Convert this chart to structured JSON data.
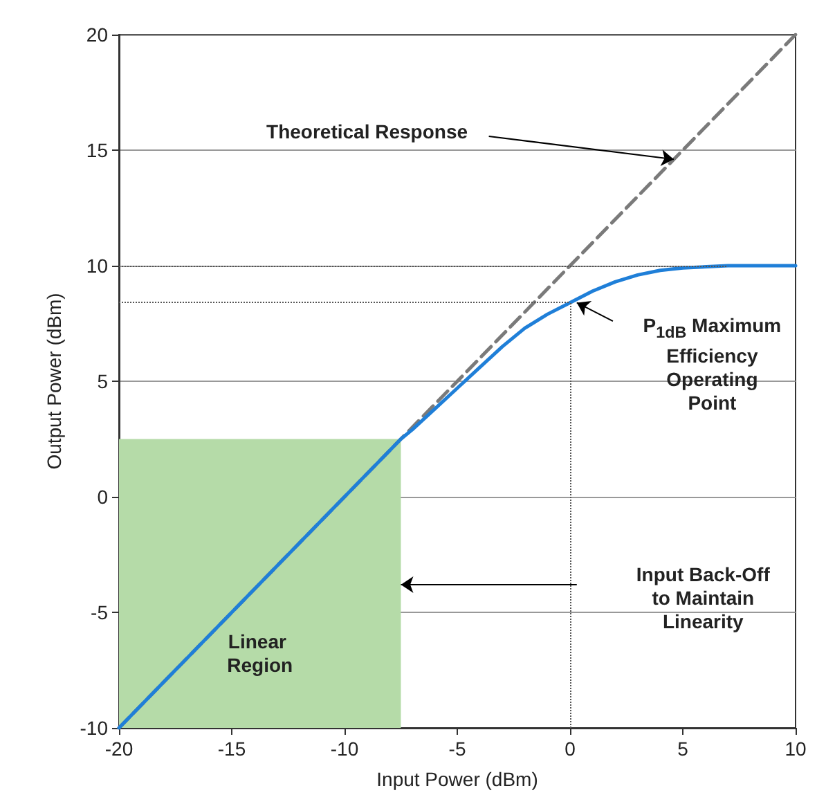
{
  "chart_data": {
    "type": "line",
    "xlabel": "Input Power (dBm)",
    "ylabel": "Output Power (dBm)",
    "xlim": [
      -20,
      10
    ],
    "xticks": [
      -20,
      -15,
      -10,
      -5,
      0,
      5,
      10
    ],
    "ylim": [
      -10,
      20
    ],
    "yticks": [
      -10,
      -5,
      0,
      5,
      10,
      15,
      20
    ],
    "grid": "y",
    "marker": "none",
    "series": [
      {
        "type": "line",
        "line_style": "dashed",
        "color": "#7a7a7a",
        "x": [
          -20,
          10
        ],
        "values": [
          -10,
          20
        ]
      },
      {
        "type": "line",
        "line_style": "solid",
        "color": "#1f7fd8",
        "x": [
          -20,
          -15,
          -10,
          -8,
          -7.5,
          -7,
          -6,
          -5,
          -4,
          -3,
          -2,
          -1,
          0,
          1,
          2,
          3,
          4,
          5,
          7,
          10
        ],
        "values": [
          -10,
          -5,
          0,
          2,
          2.5,
          2.9,
          3.8,
          4.7,
          5.6,
          6.5,
          7.3,
          7.9,
          8.4,
          8.9,
          9.3,
          9.6,
          9.8,
          9.9,
          10,
          10
        ]
      }
    ],
    "bands": [
      {
        "axis": "x",
        "from": -20,
        "to": -7.5,
        "label": "Linear Region",
        "color": "#b5dba8"
      }
    ],
    "ref_lines": [
      {
        "axis": "y",
        "value": 10,
        "line_style": "dotted",
        "color": "#555555"
      },
      {
        "axis": "y",
        "value": 8.4,
        "line_style": "dotted",
        "color": "#555555"
      },
      {
        "axis": "x",
        "value": 0,
        "line_style": "dotted",
        "color": "#555555"
      }
    ],
    "annotations": [
      {
        "text": "Theoretical Response",
        "x": 4.6,
        "y": 14.6
      },
      "P$_{1dB}$ Maximum Efficiency Operating Point",
      "Input Back-Off to Maintain Linearity"
    ]
  }
}
